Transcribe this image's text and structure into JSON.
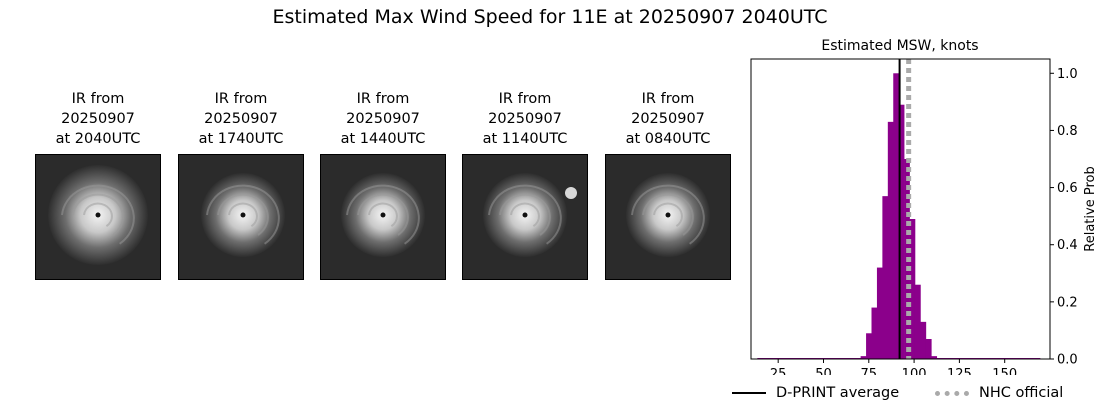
{
  "page": {
    "title": "Estimated Max Wind Speed for 11E at 20250907 2040UTC"
  },
  "ir_panels": [
    {
      "line1": "IR from",
      "line2": "20250907",
      "line3": "at 2040UTC"
    },
    {
      "line1": "IR from",
      "line2": "20250907",
      "line3": "at 1740UTC"
    },
    {
      "line1": "IR from",
      "line2": "20250907",
      "line3": "at 1440UTC"
    },
    {
      "line1": "IR from",
      "line2": "20250907",
      "line3": "at 1140UTC"
    },
    {
      "line1": "IR from",
      "line2": "20250907",
      "line3": "at 0840UTC"
    }
  ],
  "chart_data": {
    "type": "bar",
    "title": "Estimated MSW, knots",
    "xlabel": "",
    "ylabel": "Relative Prob",
    "xlim": [
      10,
      175
    ],
    "ylim": [
      0,
      1.05
    ],
    "xticks": [
      25,
      50,
      75,
      100,
      125,
      150
    ],
    "yticks": [
      0.0,
      0.2,
      0.4,
      0.6,
      0.8,
      1.0
    ],
    "ytick_labels": [
      "0.0",
      "0.2",
      "0.4",
      "0.6",
      "0.8",
      "1.0"
    ],
    "bin_width": 3,
    "bins": [
      {
        "x": 15,
        "y": 0.0
      },
      {
        "x": 18,
        "y": 0.0
      },
      {
        "x": 21,
        "y": 0.0
      },
      {
        "x": 24,
        "y": 0.0
      },
      {
        "x": 27,
        "y": 0.0
      },
      {
        "x": 30,
        "y": 0.0
      },
      {
        "x": 33,
        "y": 0.0
      },
      {
        "x": 36,
        "y": 0.0
      },
      {
        "x": 39,
        "y": 0.0
      },
      {
        "x": 42,
        "y": 0.0
      },
      {
        "x": 45,
        "y": 0.0
      },
      {
        "x": 48,
        "y": 0.0
      },
      {
        "x": 51,
        "y": 0.0
      },
      {
        "x": 54,
        "y": 0.0
      },
      {
        "x": 57,
        "y": 0.0
      },
      {
        "x": 60,
        "y": 0.0
      },
      {
        "x": 63,
        "y": 0.0
      },
      {
        "x": 66,
        "y": 0.0
      },
      {
        "x": 69,
        "y": 0.0
      },
      {
        "x": 72,
        "y": 0.01
      },
      {
        "x": 75,
        "y": 0.09
      },
      {
        "x": 78,
        "y": 0.18
      },
      {
        "x": 81,
        "y": 0.32
      },
      {
        "x": 84,
        "y": 0.57
      },
      {
        "x": 87,
        "y": 0.83
      },
      {
        "x": 90,
        "y": 1.0
      },
      {
        "x": 93,
        "y": 0.89
      },
      {
        "x": 96,
        "y": 0.7
      },
      {
        "x": 99,
        "y": 0.49
      },
      {
        "x": 102,
        "y": 0.26
      },
      {
        "x": 105,
        "y": 0.13
      },
      {
        "x": 108,
        "y": 0.07
      },
      {
        "x": 111,
        "y": 0.01
      },
      {
        "x": 114,
        "y": 0.0
      },
      {
        "x": 117,
        "y": 0.0
      },
      {
        "x": 120,
        "y": 0.0
      },
      {
        "x": 123,
        "y": 0.0
      },
      {
        "x": 126,
        "y": 0.0
      },
      {
        "x": 129,
        "y": 0.0
      },
      {
        "x": 132,
        "y": 0.0
      },
      {
        "x": 135,
        "y": 0.0
      },
      {
        "x": 138,
        "y": 0.0
      },
      {
        "x": 141,
        "y": 0.0
      },
      {
        "x": 144,
        "y": 0.0
      },
      {
        "x": 147,
        "y": 0.0
      },
      {
        "x": 150,
        "y": 0.0
      },
      {
        "x": 153,
        "y": 0.0
      },
      {
        "x": 156,
        "y": 0.0
      },
      {
        "x": 159,
        "y": 0.0
      },
      {
        "x": 162,
        "y": 0.0
      },
      {
        "x": 165,
        "y": 0.0
      },
      {
        "x": 168,
        "y": 0.0
      }
    ],
    "bar_color": "#8b008b",
    "dprint_average": 92,
    "nhc_official": 97,
    "dprint_color": "#000000",
    "nhc_color": "#aaaaaa",
    "legend": [
      {
        "label": "D-PRINT average"
      },
      {
        "label": "NHC official"
      }
    ],
    "legend_position": "bottom"
  }
}
